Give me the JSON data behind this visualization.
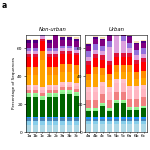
{
  "title_label": "a",
  "non_urban_bars": [
    "1a",
    "1b",
    "1c",
    "2b",
    "2c",
    "3a",
    "3b",
    "3c"
  ],
  "urban_bars": [
    "4a",
    "4b",
    "4c",
    "5a",
    "5b",
    "5c",
    "6a",
    "6b",
    "6c"
  ],
  "ylabel": "Percentage of Sequences",
  "ylim": [
    0,
    70
  ],
  "yticks": [
    0,
    20,
    40,
    60
  ],
  "colors": [
    "#add8e6",
    "#87ceeb",
    "#4682b4",
    "#1e90ff",
    "#006400",
    "#90ee90",
    "#98fb98",
    "#f08080",
    "#ffb6c1",
    "#ffc0cb",
    "#ffa500",
    "#ff8c00",
    "#ff0000",
    "#dc143c",
    "#dda0dd",
    "#9370db",
    "#800080",
    "#4b0082",
    "#f5deb3",
    "#d2691e"
  ],
  "non_urban_data": [
    [
      5,
      5,
      5,
      5,
      5,
      5,
      5,
      5
    ],
    [
      3,
      3,
      3,
      3,
      3,
      3,
      3,
      3
    ],
    [
      2,
      2,
      2,
      2,
      2,
      2,
      2,
      2
    ],
    [
      1,
      1,
      1,
      1,
      1,
      1,
      1,
      1
    ],
    [
      14,
      14,
      12,
      14,
      14,
      16,
      16,
      15
    ],
    [
      2,
      2,
      2,
      2,
      2,
      2,
      2,
      2
    ],
    [
      1,
      1,
      1,
      1,
      1,
      1,
      1,
      1
    ],
    [
      2,
      2,
      2,
      2,
      2,
      2,
      2,
      2
    ],
    [
      2,
      2,
      2,
      2,
      2,
      2,
      2,
      2
    ],
    [
      2,
      2,
      2,
      2,
      2,
      2,
      2,
      2
    ],
    [
      7,
      7,
      20,
      7,
      7,
      7,
      7,
      7
    ],
    [
      6,
      6,
      6,
      6,
      6,
      6,
      6,
      6
    ],
    [
      7,
      7,
      7,
      7,
      7,
      7,
      7,
      7
    ],
    [
      2,
      2,
      2,
      2,
      2,
      2,
      2,
      2
    ],
    [
      2,
      2,
      2,
      2,
      2,
      2,
      2,
      2
    ],
    [
      2,
      2,
      2,
      2,
      2,
      2,
      2,
      2
    ],
    [
      4,
      4,
      4,
      4,
      16,
      4,
      4,
      4
    ],
    [
      2,
      2,
      2,
      2,
      2,
      2,
      2,
      2
    ],
    [
      1,
      1,
      1,
      1,
      1,
      1,
      1,
      1
    ],
    [
      0,
      0,
      0,
      0,
      0,
      0,
      0,
      0
    ]
  ],
  "urban_data": [
    [
      6,
      6,
      6,
      6,
      6,
      6,
      6,
      6,
      6
    ],
    [
      2,
      2,
      2,
      2,
      2,
      2,
      2,
      2,
      2
    ],
    [
      1,
      1,
      1,
      1,
      1,
      1,
      1,
      1,
      1
    ],
    [
      2,
      2,
      2,
      2,
      2,
      2,
      2,
      2,
      2
    ],
    [
      4,
      4,
      8,
      4,
      10,
      10,
      5,
      5,
      6
    ],
    [
      1,
      1,
      1,
      1,
      1,
      1,
      1,
      1,
      1
    ],
    [
      1,
      1,
      1,
      1,
      1,
      1,
      1,
      1,
      1
    ],
    [
      6,
      6,
      6,
      6,
      6,
      6,
      6,
      6,
      6
    ],
    [
      6,
      6,
      6,
      6,
      6,
      6,
      6,
      6,
      6
    ],
    [
      3,
      3,
      3,
      3,
      3,
      3,
      3,
      3,
      3
    ],
    [
      5,
      10,
      5,
      5,
      5,
      5,
      10,
      5,
      5
    ],
    [
      5,
      5,
      5,
      5,
      5,
      5,
      5,
      5,
      5
    ],
    [
      6,
      6,
      6,
      6,
      6,
      6,
      6,
      6,
      6
    ],
    [
      3,
      3,
      3,
      3,
      3,
      3,
      3,
      3,
      3
    ],
    [
      3,
      3,
      3,
      10,
      16,
      8,
      3,
      3,
      3
    ],
    [
      4,
      4,
      4,
      4,
      4,
      4,
      4,
      4,
      4
    ],
    [
      4,
      4,
      4,
      4,
      4,
      4,
      4,
      4,
      4
    ],
    [
      1,
      1,
      1,
      1,
      1,
      1,
      1,
      1,
      1
    ],
    [
      1,
      1,
      1,
      1,
      1,
      1,
      1,
      1,
      1
    ],
    [
      0,
      0,
      0,
      0,
      0,
      0,
      0,
      0,
      0
    ]
  ]
}
